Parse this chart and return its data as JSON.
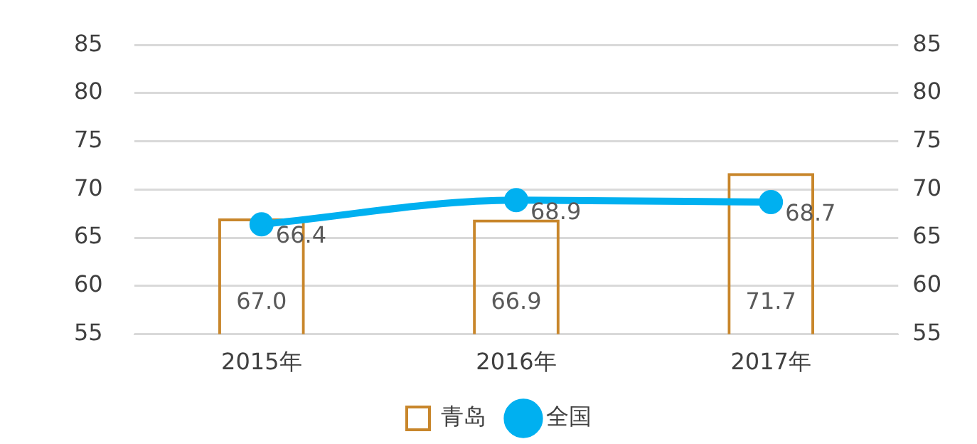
{
  "chart_data": {
    "type": "bar",
    "categories": [
      "2015年",
      "2016年",
      "2017年"
    ],
    "series": [
      {
        "name": "青岛",
        "color": "#c8862b",
        "values": [
          67.0,
          66.9,
          71.7
        ],
        "value_labels": [
          "67.0",
          "66.9",
          "71.7"
        ]
      },
      {
        "name": "全国",
        "type": "line",
        "color": "#00b0f0",
        "values": [
          66.4,
          68.9,
          68.7
        ],
        "value_labels": [
          "66.4",
          "68.9",
          "68.7"
        ]
      }
    ],
    "ylim": [
      55,
      85
    ],
    "yticks": [
      55,
      60,
      65,
      70,
      75,
      80,
      85
    ],
    "y2lim": [
      55,
      85
    ],
    "y2ticks": [
      55,
      60,
      65,
      70,
      75,
      80,
      85
    ],
    "grid": "y",
    "legend": "bottom",
    "marker": "circle",
    "line_style": "solid"
  }
}
